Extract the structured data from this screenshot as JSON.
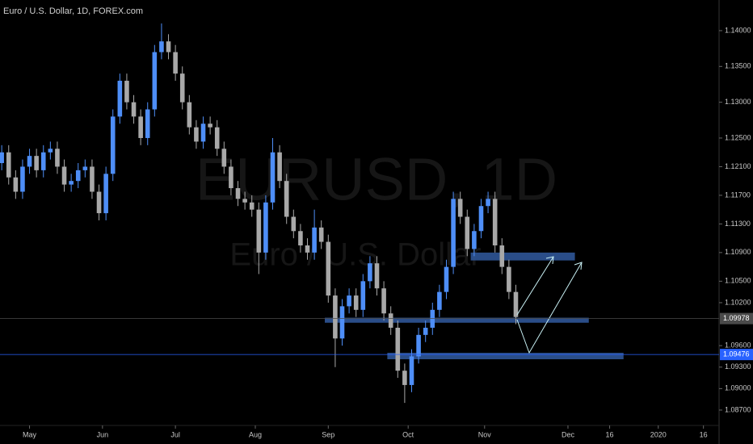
{
  "chart_data": {
    "type": "candlestick",
    "title": "Euro / U.S. Dollar, 1D, FOREX.com",
    "watermark": "EURUSD, 1D",
    "watermark_subtitle": "Euro / U.S. Dollar",
    "up_color": "#4e8ef7",
    "down_color": "#a8a8a8",
    "xlim": [
      -0.5,
      206.5
    ],
    "ylim": [
      1.08226,
      1.14428
    ],
    "xticks": [
      {
        "value": 8,
        "label": "May"
      },
      {
        "value": 29,
        "label": "Jun"
      },
      {
        "value": 50,
        "label": "Jul"
      },
      {
        "value": 73,
        "label": "Aug"
      },
      {
        "value": 94,
        "label": "Sep"
      },
      {
        "value": 117,
        "label": "Oct"
      },
      {
        "value": 139,
        "label": "Nov"
      },
      {
        "value": 163,
        "label": "Dec"
      },
      {
        "value": 175,
        "label": "16"
      },
      {
        "value": 189,
        "label": "2020"
      },
      {
        "value": 202,
        "label": "16"
      }
    ],
    "yticks": [
      {
        "value": 1.14,
        "label": "1.14000"
      },
      {
        "value": 1.135,
        "label": "1.13500"
      },
      {
        "value": 1.13,
        "label": "1.13000"
      },
      {
        "value": 1.125,
        "label": "1.12500"
      },
      {
        "value": 1.121,
        "label": "1.12100"
      },
      {
        "value": 1.117,
        "label": "1.11700"
      },
      {
        "value": 1.113,
        "label": "1.11300"
      },
      {
        "value": 1.109,
        "label": "1.10900"
      },
      {
        "value": 1.105,
        "label": "1.10500"
      },
      {
        "value": 1.102,
        "label": "1.10200"
      },
      {
        "value": 1.096,
        "label": "1.09600"
      },
      {
        "value": 1.093,
        "label": "1.09300"
      },
      {
        "value": 1.09,
        "label": "1.09000"
      },
      {
        "value": 1.087,
        "label": "1.08700"
      }
    ],
    "x": [
      0,
      2,
      4,
      6,
      8,
      10,
      12,
      14,
      16,
      18,
      20,
      22,
      24,
      26,
      28,
      30,
      32,
      34,
      36,
      38,
      40,
      42,
      44,
      46,
      48,
      50,
      52,
      54,
      56,
      58,
      60,
      62,
      64,
      66,
      68,
      70,
      72,
      74,
      76,
      78,
      80,
      82,
      84,
      86,
      88,
      90,
      92,
      94,
      96,
      98,
      100,
      102,
      104,
      106,
      108,
      110,
      112,
      114,
      116,
      118,
      120,
      122,
      124,
      126,
      128,
      130,
      132,
      134,
      136,
      138,
      140,
      142,
      144,
      146,
      148
    ],
    "open": [
      1.1215,
      1.123,
      1.1195,
      1.1175,
      1.121,
      1.1225,
      1.1205,
      1.123,
      1.1235,
      1.121,
      1.1185,
      1.119,
      1.1205,
      1.121,
      1.1175,
      1.1145,
      1.12,
      1.128,
      1.133,
      1.13,
      1.128,
      1.125,
      1.129,
      1.137,
      1.1385,
      1.137,
      1.134,
      1.13,
      1.1265,
      1.1245,
      1.127,
      1.1265,
      1.1235,
      1.121,
      1.118,
      1.1165,
      1.116,
      1.115,
      1.109,
      1.116,
      1.123,
      1.119,
      1.114,
      1.112,
      1.11,
      1.109,
      1.1125,
      1.1105,
      1.103,
      1.097,
      1.1015,
      1.103,
      1.101,
      1.105,
      1.1075,
      1.104,
      1.1005,
      1.0985,
      1.0925,
      1.0905,
      1.0945,
      1.0975,
      1.0985,
      1.101,
      1.1035,
      1.107,
      1.1165,
      1.114,
      1.1095,
      1.112,
      1.1155,
      1.1165,
      1.11,
      1.107,
      1.1035
    ],
    "high": [
      1.124,
      1.124,
      1.1205,
      1.122,
      1.1235,
      1.1235,
      1.124,
      1.1245,
      1.1245,
      1.122,
      1.12,
      1.1215,
      1.122,
      1.122,
      1.1185,
      1.121,
      1.129,
      1.134,
      1.134,
      1.131,
      1.129,
      1.13,
      1.138,
      1.141,
      1.1395,
      1.138,
      1.135,
      1.131,
      1.1275,
      1.128,
      1.128,
      1.1275,
      1.1245,
      1.122,
      1.119,
      1.1175,
      1.117,
      1.116,
      1.117,
      1.125,
      1.124,
      1.12,
      1.115,
      1.113,
      1.111,
      1.115,
      1.1135,
      1.1115,
      1.104,
      1.1025,
      1.104,
      1.104,
      1.106,
      1.1085,
      1.1085,
      1.105,
      1.1015,
      1.0995,
      1.0935,
      1.0955,
      1.0985,
      1.0995,
      1.102,
      1.1045,
      1.108,
      1.1175,
      1.1175,
      1.115,
      1.113,
      1.1165,
      1.1175,
      1.1175,
      1.111,
      1.108,
      1.1045
    ],
    "low": [
      1.1205,
      1.1185,
      1.1165,
      1.1165,
      1.12,
      1.1195,
      1.1195,
      1.122,
      1.12,
      1.1175,
      1.1175,
      1.118,
      1.1195,
      1.1165,
      1.1135,
      1.1135,
      1.119,
      1.127,
      1.129,
      1.127,
      1.124,
      1.124,
      1.128,
      1.136,
      1.136,
      1.133,
      1.129,
      1.1255,
      1.1235,
      1.1235,
      1.1255,
      1.1225,
      1.12,
      1.117,
      1.1155,
      1.115,
      1.114,
      1.106,
      1.108,
      1.115,
      1.118,
      1.113,
      1.111,
      1.109,
      1.108,
      1.108,
      1.1095,
      1.102,
      1.093,
      1.096,
      1.1005,
      1.1,
      1.1,
      1.104,
      1.103,
      1.0995,
      1.0975,
      1.0915,
      1.088,
      1.0895,
      1.0935,
      1.0965,
      1.0975,
      1.1,
      1.1025,
      1.106,
      1.113,
      1.1085,
      1.1085,
      1.111,
      1.1145,
      1.109,
      1.106,
      1.1025,
      1.099
    ],
    "close": [
      1.123,
      1.1195,
      1.1175,
      1.121,
      1.1225,
      1.1205,
      1.123,
      1.1235,
      1.121,
      1.1185,
      1.119,
      1.1205,
      1.121,
      1.1175,
      1.1145,
      1.12,
      1.128,
      1.133,
      1.13,
      1.128,
      1.125,
      1.129,
      1.137,
      1.1385,
      1.137,
      1.134,
      1.13,
      1.1265,
      1.1245,
      1.127,
      1.1265,
      1.1235,
      1.121,
      1.118,
      1.1165,
      1.116,
      1.115,
      1.109,
      1.116,
      1.123,
      1.119,
      1.114,
      1.112,
      1.11,
      1.109,
      1.1125,
      1.1105,
      1.103,
      1.097,
      1.1015,
      1.103,
      1.101,
      1.105,
      1.1075,
      1.104,
      1.1005,
      1.0985,
      1.0925,
      1.0905,
      1.0945,
      1.0975,
      1.0985,
      1.101,
      1.1035,
      1.107,
      1.1165,
      1.114,
      1.1095,
      1.112,
      1.1155,
      1.1165,
      1.11,
      1.107,
      1.1035,
      1.1
    ],
    "zones": [
      {
        "x": [
          135,
          165
        ],
        "y": [
          1.1079,
          1.109
        ]
      },
      {
        "x": [
          93,
          169
        ],
        "y": [
          1.0992,
          1.0999
        ]
      },
      {
        "x": [
          111,
          179
        ],
        "y": [
          1.0941,
          1.095
        ]
      }
    ],
    "zone_color": "#2f5597",
    "price_labels": [
      {
        "value": 1.09978,
        "color": "#4a4a4a"
      },
      {
        "value": 1.09476,
        "color": "#2962ff"
      }
    ]
  }
}
